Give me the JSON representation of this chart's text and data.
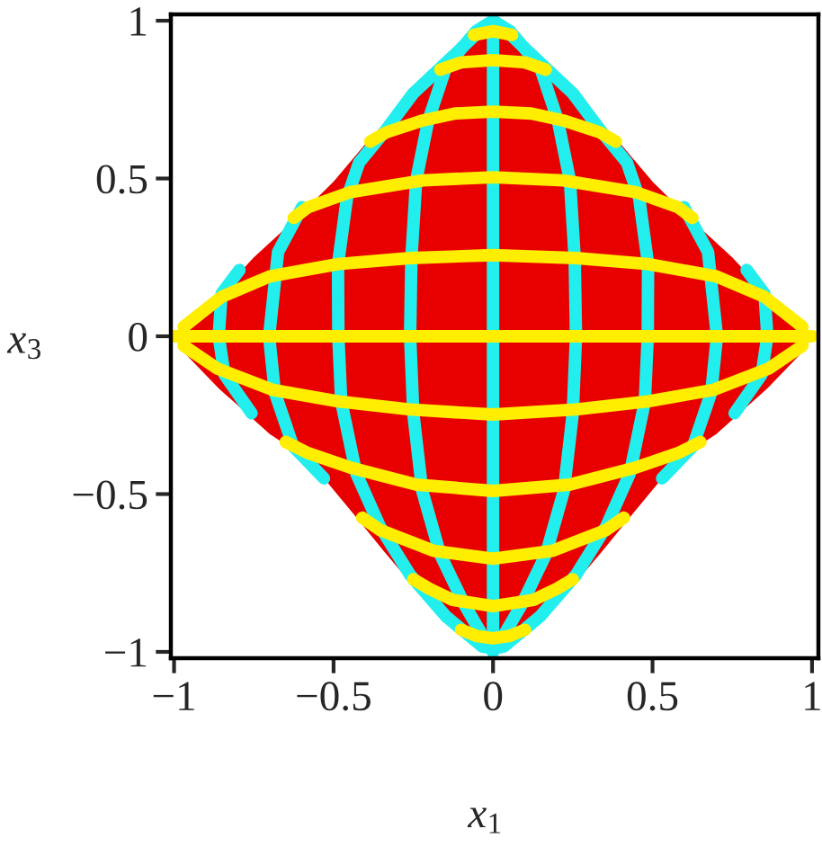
{
  "chart_data": {
    "type": "line",
    "xlabel": "x$_{1}$",
    "ylabel": "x$_{3}$",
    "xlim": [
      -1.01,
      1.02
    ],
    "ylim": [
      -1.02,
      1.02
    ],
    "xticks": [
      -1,
      -0.5,
      0,
      0.5,
      1
    ],
    "yticks": [
      -1,
      -0.5,
      0,
      0.5,
      1
    ],
    "series": [
      {
        "type": "area",
        "color": "#e80000",
        "x": [
          -1,
          -0.94,
          -0.855,
          -0.75,
          -0.61,
          -0.5,
          -0.4,
          -0.25,
          -0.165,
          -0.05,
          0,
          0.05,
          0.165,
          0.25,
          0.4,
          0.5,
          0.61,
          0.75,
          0.855,
          0.94,
          1
        ],
        "values": [
          0,
          0.06,
          0.135,
          0.25,
          0.38,
          0.49,
          0.61,
          0.77,
          0.85,
          0.96,
          0.99,
          0.96,
          0.85,
          0.77,
          0.61,
          0.49,
          0.38,
          0.25,
          0.135,
          0.06,
          0
        ]
      },
      {
        "type": "area",
        "color": "#e80000",
        "x": [
          -1,
          -0.97,
          -0.86,
          -0.7,
          -0.625,
          -0.53,
          -0.44,
          -0.343,
          -0.154,
          0,
          0.154,
          0.343,
          0.44,
          0.53,
          0.625,
          0.7,
          0.86,
          0.97,
          1
        ],
        "values": [
          0,
          -0.05,
          -0.165,
          -0.31,
          -0.36,
          -0.45,
          -0.56,
          -0.68,
          -0.907,
          -0.99,
          -0.907,
          -0.68,
          -0.56,
          -0.45,
          -0.36,
          -0.31,
          -0.165,
          -0.05,
          0
        ]
      },
      {
        "color": "#22eeee",
        "x": [
          0,
          0,
          0,
          0,
          0
        ],
        "values": [
          1,
          0.5,
          0,
          -0.5,
          -1
        ]
      },
      {
        "color": "#22eeee",
        "x": [
          0,
          0.053,
          0.147,
          0.203,
          0.241,
          0.256,
          0.26,
          0.25,
          0.222,
          0.166,
          0.09,
          0.024,
          0
        ],
        "values": [
          1,
          0.967,
          0.854,
          0.684,
          0.494,
          0.248,
          0,
          -0.244,
          -0.49,
          -0.69,
          -0.85,
          -0.964,
          -0.99
        ]
      },
      {
        "color": "#22eeee",
        "x": [
          0,
          -0.053,
          -0.147,
          -0.203,
          -0.241,
          -0.256,
          -0.26,
          -0.25,
          -0.222,
          -0.166,
          -0.09,
          -0.024,
          0
        ],
        "values": [
          1,
          0.967,
          0.854,
          0.684,
          0.494,
          0.248,
          0,
          -0.244,
          -0.49,
          -0.69,
          -0.85,
          -0.964,
          -0.99
        ]
      },
      {
        "color": "#22eeee",
        "x": [
          0,
          0.05,
          0.165,
          0.25,
          0.335,
          0.42,
          0.458,
          0.486,
          0.485,
          0.476,
          0.429,
          0.354,
          0.26,
          0.147,
          0.034,
          0
        ],
        "values": [
          0.99,
          0.96,
          0.85,
          0.77,
          0.655,
          0.55,
          0.438,
          0.229,
          0,
          -0.206,
          -0.434,
          -0.604,
          -0.756,
          -0.888,
          -0.983,
          -0.99
        ]
      },
      {
        "color": "#22eeee",
        "x": [
          0,
          -0.05,
          -0.165,
          -0.25,
          -0.335,
          -0.42,
          -0.458,
          -0.486,
          -0.485,
          -0.476,
          -0.429,
          -0.354,
          -0.26,
          -0.147,
          -0.034,
          0
        ],
        "values": [
          0.99,
          0.96,
          0.85,
          0.77,
          0.655,
          0.55,
          0.438,
          0.229,
          0,
          -0.206,
          -0.434,
          -0.604,
          -0.756,
          -0.888,
          -0.983,
          -0.99
        ]
      },
      {
        "color": "#22eeee",
        "x": [
          0.599,
          0.674,
          0.702,
          0.684,
          0.627,
          0.53
        ],
        "values": [
          0.409,
          0.267,
          0,
          -0.178,
          -0.348,
          -0.45
        ]
      },
      {
        "color": "#22eeee",
        "x": [
          -0.599,
          -0.674,
          -0.702,
          -0.684,
          -0.627,
          -0.53
        ],
        "values": [
          0.409,
          0.267,
          0,
          -0.178,
          -0.348,
          -0.45
        ]
      },
      {
        "color": "#22eeee",
        "x": [
          0.795,
          0.851,
          0.86,
          0.842,
          0.757
        ],
        "values": [
          0.21,
          0.135,
          0,
          -0.121,
          -0.244
        ]
      },
      {
        "color": "#22eeee",
        "x": [
          -0.795,
          -0.851,
          -0.86,
          -0.842,
          -0.757
        ],
        "values": [
          0.21,
          0.135,
          0,
          -0.121,
          -0.244
        ]
      },
      {
        "color": "#ffee00",
        "x": [
          -0.06,
          0,
          0.06
        ],
        "values": [
          0.955,
          0.967,
          0.955
        ]
      },
      {
        "color": "#ffee00",
        "x": [
          -0.165,
          -0.1,
          0,
          0.1,
          0.165
        ],
        "values": [
          0.845,
          0.868,
          0.875,
          0.868,
          0.845
        ]
      },
      {
        "color": "#ffee00",
        "x": [
          -0.385,
          -0.335,
          -0.22,
          -0.12,
          0,
          0.12,
          0.22,
          0.335,
          0.385
        ],
        "values": [
          0.617,
          0.646,
          0.684,
          0.706,
          0.712,
          0.706,
          0.684,
          0.646,
          0.617
        ]
      },
      {
        "color": "#ffee00",
        "x": [
          -0.625,
          -0.58,
          -0.45,
          -0.22,
          0,
          0.22,
          0.45,
          0.58,
          0.625
        ],
        "values": [
          0.375,
          0.409,
          0.456,
          0.494,
          0.504,
          0.494,
          0.456,
          0.409,
          0.375
        ]
      },
      {
        "color": "#ffee00",
        "x": [
          -0.97,
          -0.851,
          -0.7,
          -0.485,
          -0.26,
          0,
          0.26,
          0.485,
          0.7,
          0.851,
          0.97
        ],
        "values": [
          0.03,
          0.125,
          0.19,
          0.229,
          0.248,
          0.257,
          0.248,
          0.229,
          0.19,
          0.125,
          0.03
        ]
      },
      {
        "color": "#ffee00",
        "x": [
          -1,
          -0.5,
          0,
          0.5,
          1
        ],
        "values": [
          0,
          0,
          0,
          0,
          0
        ]
      },
      {
        "color": "#ffee00",
        "x": [
          -0.97,
          -0.865,
          -0.69,
          -0.486,
          -0.26,
          0,
          0.26,
          0.486,
          0.69,
          0.865,
          0.97
        ],
        "values": [
          -0.03,
          -0.102,
          -0.17,
          -0.206,
          -0.232,
          -0.248,
          -0.232,
          -0.206,
          -0.17,
          -0.102,
          -0.03
        ]
      },
      {
        "color": "#ffee00",
        "x": [
          -0.65,
          -0.58,
          -0.45,
          -0.24,
          0,
          0.24,
          0.45,
          0.58,
          0.65
        ],
        "values": [
          -0.335,
          -0.37,
          -0.415,
          -0.47,
          -0.49,
          -0.47,
          -0.415,
          -0.37,
          -0.335
        ]
      },
      {
        "color": "#ffee00",
        "x": [
          -0.41,
          -0.354,
          -0.185,
          0,
          0.185,
          0.354,
          0.41
        ],
        "values": [
          -0.575,
          -0.614,
          -0.68,
          -0.705,
          -0.68,
          -0.614,
          -0.575
        ]
      },
      {
        "color": "#ffee00",
        "x": [
          -0.25,
          -0.2,
          -0.128,
          0,
          0.128,
          0.2,
          0.25
        ],
        "values": [
          -0.77,
          -0.8,
          -0.835,
          -0.855,
          -0.835,
          -0.8,
          -0.77
        ]
      },
      {
        "color": "#ffee00",
        "x": [
          -0.1,
          -0.05,
          0,
          0.05,
          0.1
        ],
        "values": [
          -0.93,
          -0.95,
          -0.957,
          -0.95,
          -0.93
        ]
      }
    ]
  }
}
